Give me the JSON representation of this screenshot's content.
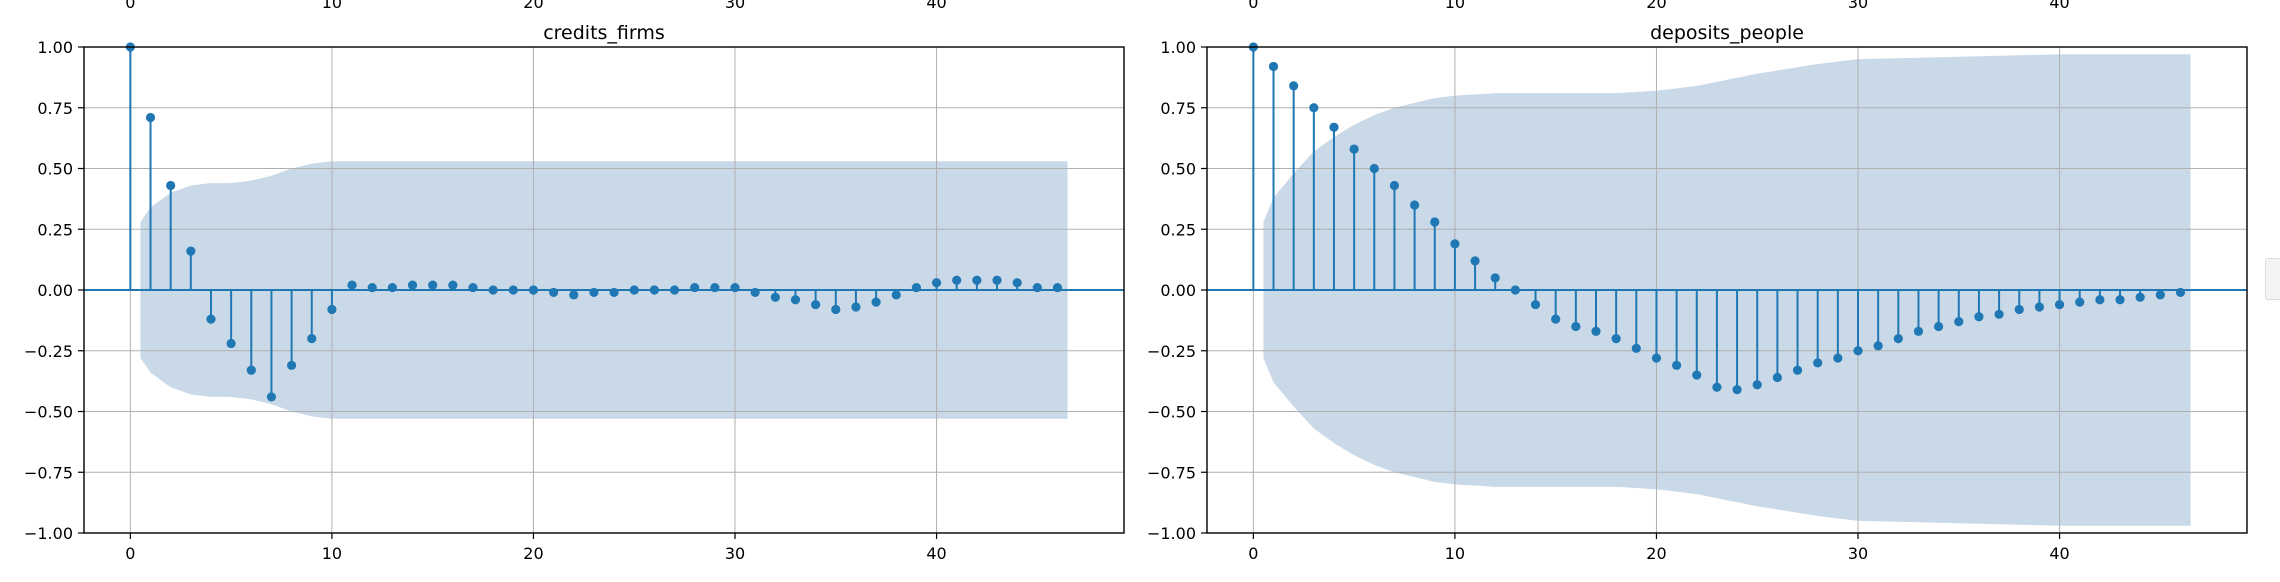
{
  "chart_data": [
    {
      "type": "stem",
      "title": "credits_firms",
      "xlim": [
        -2.3,
        49.3
      ],
      "ylim": [
        -1.0,
        1.0
      ],
      "xticks": [
        0,
        10,
        20,
        30,
        40
      ],
      "yticks": [
        -1.0,
        -0.75,
        -0.5,
        -0.25,
        0.0,
        0.25,
        0.5,
        0.75,
        1.0
      ],
      "ytick_labels": [
        "−1.00",
        "−0.75",
        "−0.50",
        "−0.25",
        "0.00",
        "0.25",
        "0.50",
        "0.75",
        "1.00"
      ],
      "grid": true,
      "lags": [
        0,
        1,
        2,
        3,
        4,
        5,
        6,
        7,
        8,
        9,
        10,
        11,
        12,
        13,
        14,
        15,
        16,
        17,
        18,
        19,
        20,
        21,
        22,
        23,
        24,
        25,
        26,
        27,
        28,
        29,
        30,
        31,
        32,
        33,
        34,
        35,
        36,
        37,
        38,
        39,
        40,
        41,
        42,
        43,
        44,
        45,
        46
      ],
      "values": [
        1.0,
        0.71,
        0.43,
        0.16,
        -0.12,
        -0.22,
        -0.33,
        -0.44,
        -0.31,
        -0.2,
        -0.08,
        0.02,
        0.01,
        0.01,
        0.02,
        0.02,
        0.02,
        0.01,
        0.0,
        0.0,
        0.0,
        -0.01,
        -0.02,
        -0.01,
        -0.01,
        0.0,
        0.0,
        0.0,
        0.01,
        0.01,
        0.01,
        -0.01,
        -0.03,
        -0.04,
        -0.06,
        -0.08,
        -0.07,
        -0.05,
        -0.02,
        0.01,
        0.03,
        0.04,
        0.04,
        0.04,
        0.03,
        0.01,
        0.01
      ],
      "confint_x": [
        0.5,
        1,
        2,
        3,
        4,
        5,
        6,
        7,
        8,
        9,
        10,
        12,
        15,
        20,
        25,
        30,
        35,
        40,
        46.5
      ],
      "confint_upper": [
        0.28,
        0.34,
        0.4,
        0.43,
        0.44,
        0.44,
        0.45,
        0.47,
        0.5,
        0.52,
        0.53,
        0.53,
        0.53,
        0.53,
        0.53,
        0.53,
        0.53,
        0.53,
        0.53
      ],
      "color": "#1f77b4",
      "band_color": "#c9d9e8"
    },
    {
      "type": "stem",
      "title": "deposits_people",
      "xlim": [
        -2.3,
        49.3
      ],
      "ylim": [
        -1.0,
        1.0
      ],
      "xticks": [
        0,
        10,
        20,
        30,
        40
      ],
      "yticks": [
        -1.0,
        -0.75,
        -0.5,
        -0.25,
        0.0,
        0.25,
        0.5,
        0.75,
        1.0
      ],
      "ytick_labels": [
        "−1.00",
        "−0.75",
        "−0.50",
        "−0.25",
        "0.00",
        "0.25",
        "0.50",
        "0.75",
        "1.00"
      ],
      "grid": true,
      "lags": [
        0,
        1,
        2,
        3,
        4,
        5,
        6,
        7,
        8,
        9,
        10,
        11,
        12,
        13,
        14,
        15,
        16,
        17,
        18,
        19,
        20,
        21,
        22,
        23,
        24,
        25,
        26,
        27,
        28,
        29,
        30,
        31,
        32,
        33,
        34,
        35,
        36,
        37,
        38,
        39,
        40,
        41,
        42,
        43,
        44,
        45,
        46
      ],
      "values": [
        1.0,
        0.92,
        0.84,
        0.75,
        0.67,
        0.58,
        0.5,
        0.43,
        0.35,
        0.28,
        0.19,
        0.12,
        0.05,
        0.0,
        -0.06,
        -0.12,
        -0.15,
        -0.17,
        -0.2,
        -0.24,
        -0.28,
        -0.31,
        -0.35,
        -0.4,
        -0.41,
        -0.39,
        -0.36,
        -0.33,
        -0.3,
        -0.28,
        -0.25,
        -0.23,
        -0.2,
        -0.17,
        -0.15,
        -0.13,
        -0.11,
        -0.1,
        -0.08,
        -0.07,
        -0.06,
        -0.05,
        -0.04,
        -0.04,
        -0.03,
        -0.02,
        -0.01
      ],
      "confint_x": [
        0.5,
        1,
        2,
        3,
        4,
        5,
        6,
        7,
        8,
        9,
        10,
        12,
        15,
        18,
        20,
        22,
        25,
        28,
        30,
        35,
        40,
        46.5
      ],
      "confint_upper": [
        0.28,
        0.38,
        0.48,
        0.57,
        0.63,
        0.68,
        0.72,
        0.75,
        0.77,
        0.79,
        0.8,
        0.81,
        0.81,
        0.81,
        0.82,
        0.84,
        0.89,
        0.93,
        0.95,
        0.96,
        0.97,
        0.97
      ],
      "color": "#1f77b4",
      "band_color": "#c9d9e8"
    }
  ]
}
